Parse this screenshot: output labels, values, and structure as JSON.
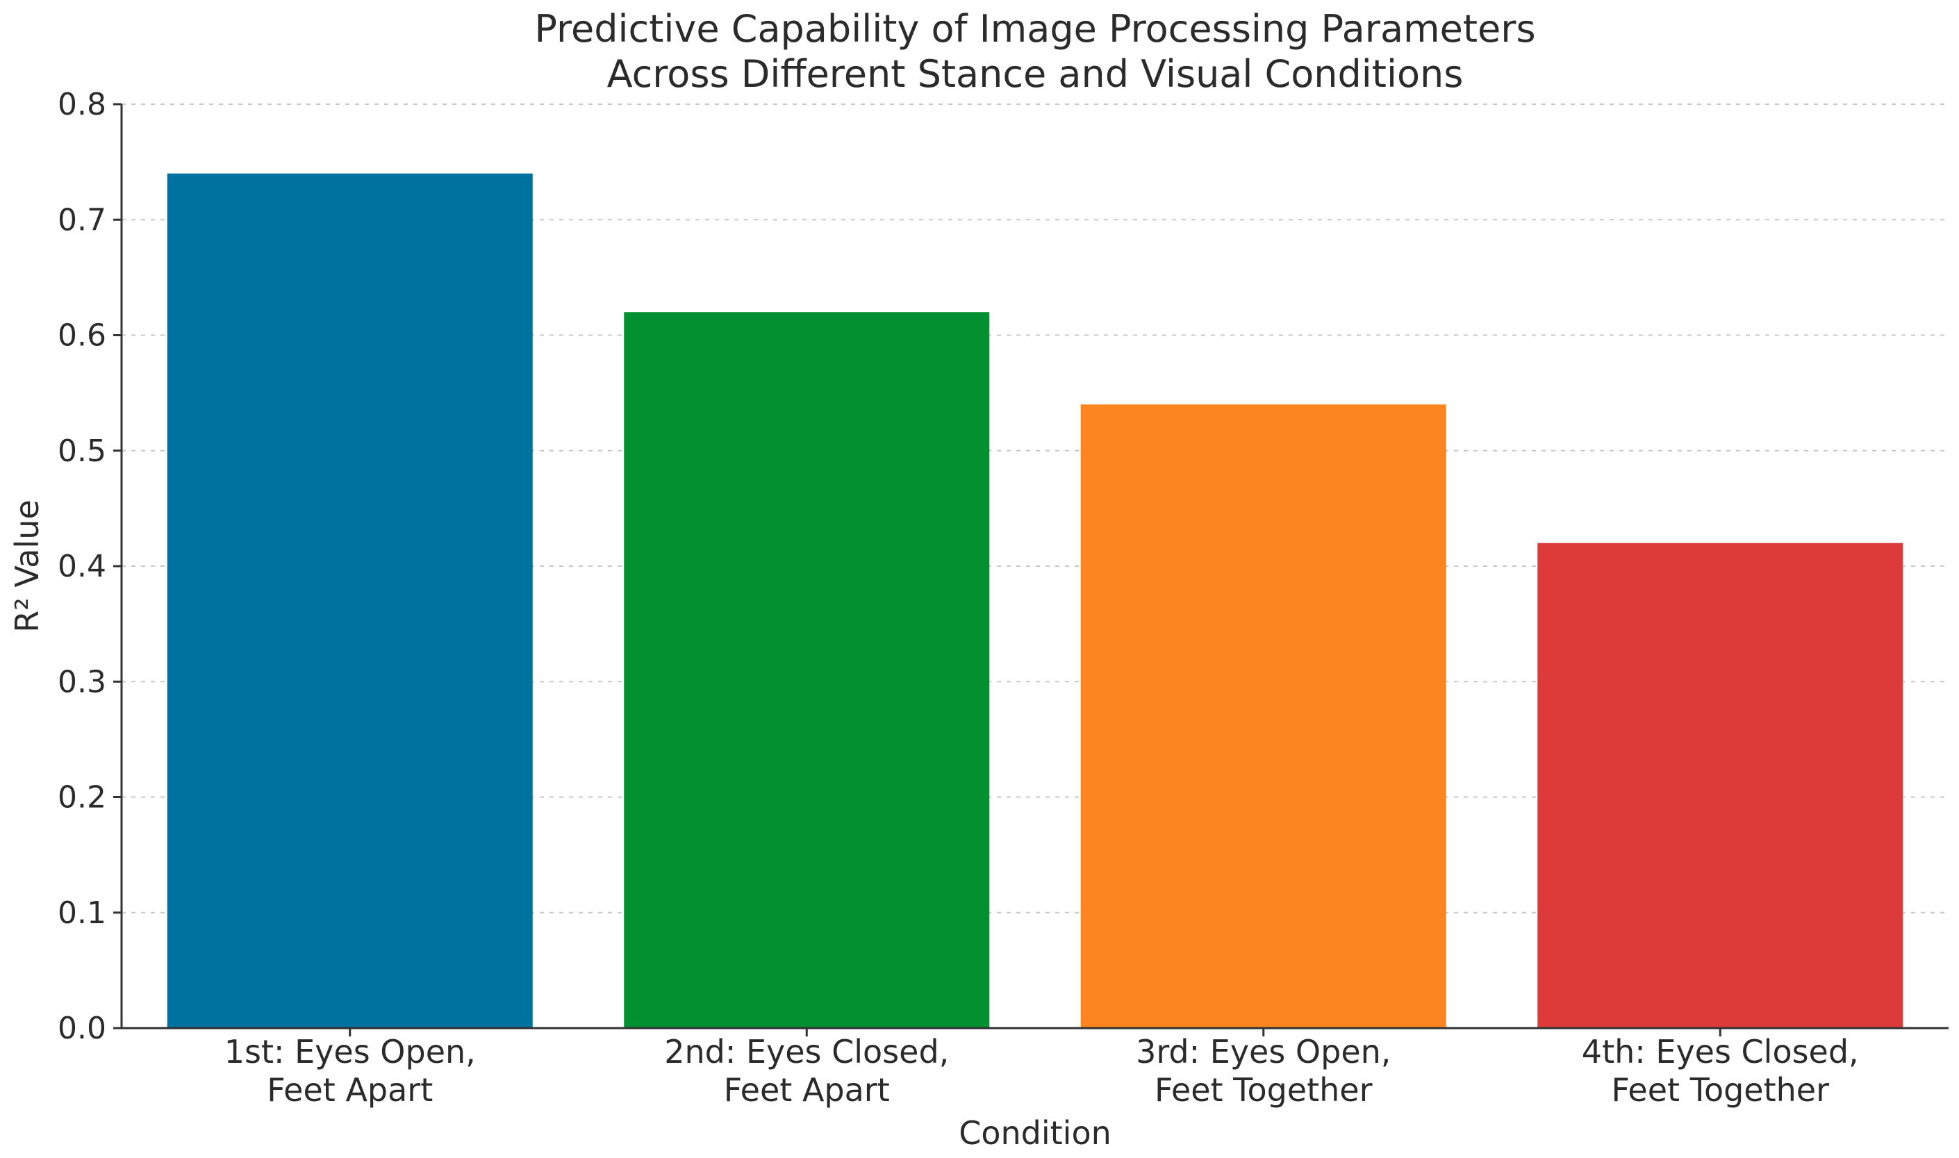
{
  "chart_data": {
    "type": "bar",
    "title": [
      "Predictive Capability of Image Processing Parameters",
      "Across Different Stance and Visual Conditions"
    ],
    "xlabel": "Condition",
    "ylabel": "R² Value",
    "ylim": [
      0,
      0.8
    ],
    "yticks": [
      "0.0",
      "0.1",
      "0.2",
      "0.3",
      "0.4",
      "0.5",
      "0.6",
      "0.7",
      "0.8"
    ],
    "grid": "horizontal, dashed",
    "categories": [
      [
        "1st: Eyes Open,",
        "Feet Apart"
      ],
      [
        "2nd: Eyes Closed,",
        "Feet Apart"
      ],
      [
        "3rd: Eyes Open,",
        "Feet Together"
      ],
      [
        "4th: Eyes Closed,",
        "Feet Together"
      ]
    ],
    "values": [
      0.74,
      0.62,
      0.54,
      0.42
    ],
    "colors": [
      "#0072A0",
      "#039030",
      "#FC8520",
      "#DD3A3A"
    ]
  }
}
